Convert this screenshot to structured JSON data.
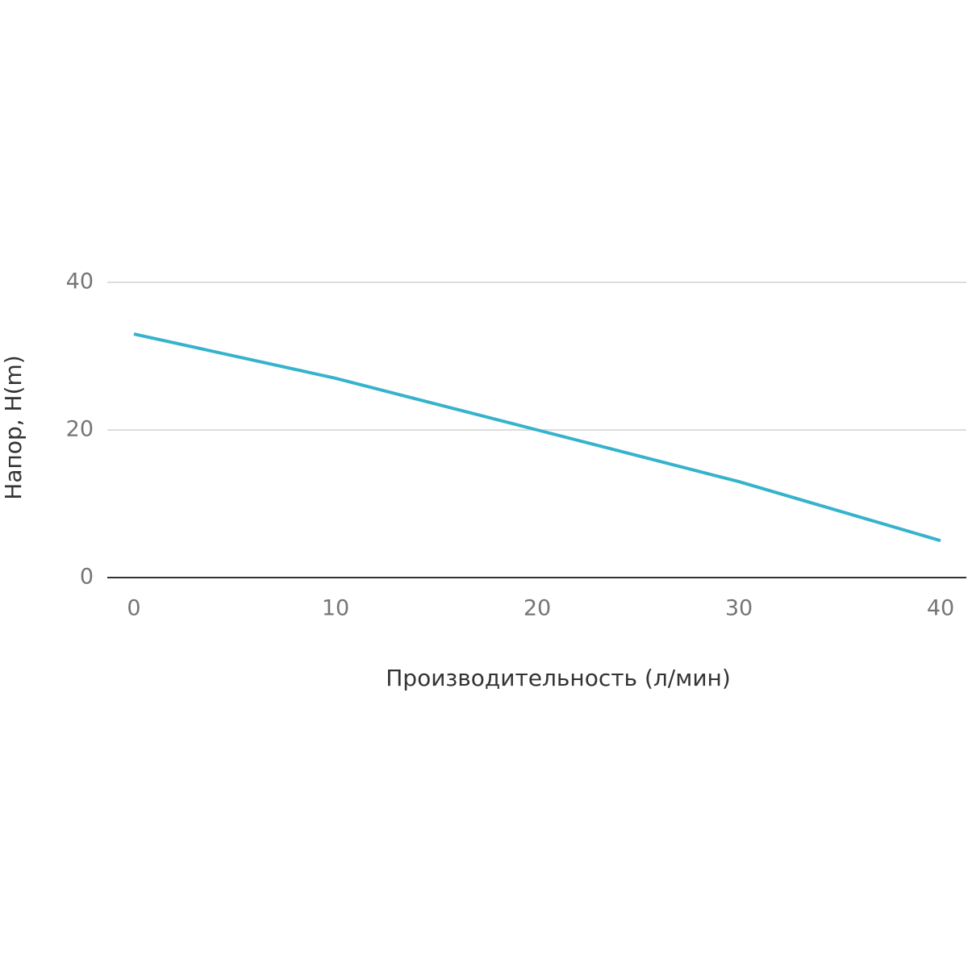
{
  "chart_data": {
    "type": "line",
    "x_label": "Производительность (л/мин)",
    "y_label": "Напор, H(m)",
    "x": [
      0,
      10,
      20,
      30,
      40
    ],
    "series": [
      {
        "name": "H",
        "color": "#36b3cc",
        "values": [
          33,
          27,
          20,
          13,
          5
        ]
      }
    ],
    "xlim": [
      0,
      40
    ],
    "xticks": [
      0,
      10,
      20,
      30,
      40
    ],
    "ylim": [
      0,
      40
    ],
    "yticks": [
      0,
      20,
      40
    ],
    "grid": true
  }
}
